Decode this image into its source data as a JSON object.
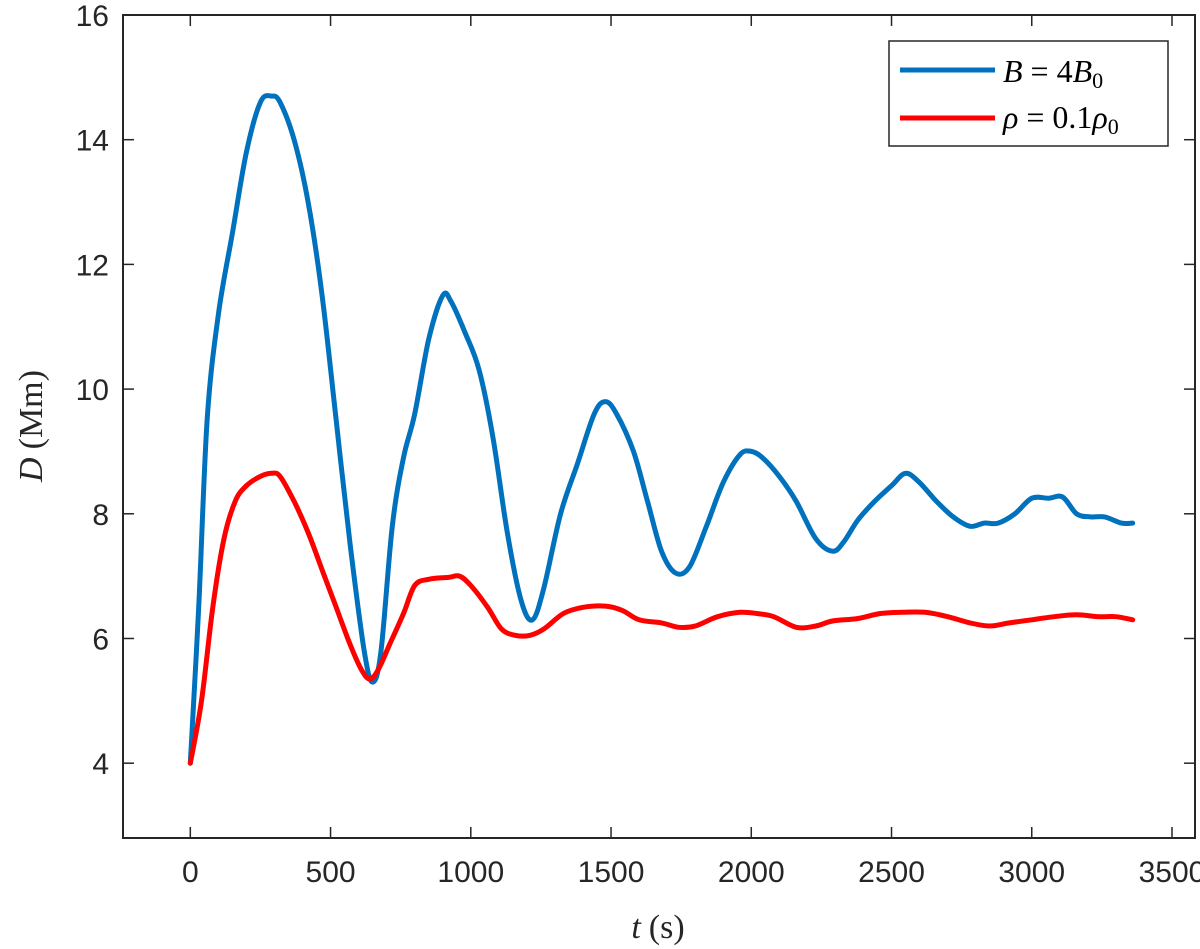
{
  "chart_data": {
    "type": "line",
    "title": "",
    "xlabel": "t (s)",
    "ylabel": "D (Mm)",
    "xlim": [
      -240,
      3582
    ],
    "ylim": [
      2.8,
      16
    ],
    "xticks": [
      0,
      500,
      1000,
      1500,
      2000,
      2500,
      3000,
      3500
    ],
    "yticks": [
      4,
      6,
      8,
      10,
      12,
      14,
      16
    ],
    "grid": false,
    "legend_position": "upper right",
    "series": [
      {
        "name": "B = 4B_0",
        "color": "#0072BD",
        "t": [
          0,
          30,
          60,
          100,
          150,
          200,
          250,
          290,
          320,
          370,
          420,
          470,
          520,
          570,
          620,
          650,
          680,
          720,
          760,
          800,
          850,
          900,
          930,
          980,
          1030,
          1080,
          1130,
          1180,
          1220,
          1260,
          1320,
          1380,
          1440,
          1480,
          1520,
          1580,
          1630,
          1680,
          1730,
          1780,
          1840,
          1900,
          1960,
          2000,
          2040,
          2100,
          2160,
          2230,
          2290,
          2330,
          2380,
          2440,
          2500,
          2550,
          2600,
          2660,
          2720,
          2780,
          2830,
          2880,
          2940,
          3000,
          3060,
          3110,
          3160,
          3210,
          3260,
          3320,
          3360
        ],
        "values": [
          4.0,
          6.5,
          9.5,
          11.2,
          12.5,
          13.8,
          14.6,
          14.7,
          14.6,
          14.0,
          13.0,
          11.5,
          9.5,
          7.5,
          5.8,
          5.3,
          5.8,
          7.8,
          8.9,
          9.6,
          10.8,
          11.5,
          11.4,
          10.9,
          10.3,
          9.2,
          7.7,
          6.6,
          6.3,
          6.8,
          8.0,
          8.8,
          9.6,
          9.8,
          9.6,
          9.0,
          8.2,
          7.4,
          7.05,
          7.15,
          7.8,
          8.5,
          8.95,
          9.0,
          8.9,
          8.6,
          8.2,
          7.6,
          7.4,
          7.55,
          7.9,
          8.2,
          8.45,
          8.65,
          8.5,
          8.2,
          7.95,
          7.8,
          7.85,
          7.85,
          8.0,
          8.25,
          8.25,
          8.27,
          8.0,
          7.95,
          7.95,
          7.85,
          7.85
        ]
      },
      {
        "name": "ρ = 0.1ρ_0",
        "color": "#FF0000",
        "t": [
          0,
          40,
          80,
          120,
          160,
          200,
          250,
          290,
          320,
          370,
          420,
          470,
          520,
          570,
          610,
          640,
          670,
          710,
          760,
          800,
          850,
          920,
          960,
          1000,
          1060,
          1110,
          1160,
          1210,
          1260,
          1330,
          1400,
          1480,
          1540,
          1600,
          1680,
          1740,
          1800,
          1880,
          1960,
          2020,
          2080,
          2160,
          2230,
          2290,
          2380,
          2460,
          2540,
          2620,
          2700,
          2780,
          2850,
          2920,
          3000,
          3080,
          3160,
          3240,
          3300,
          3360
        ],
        "values": [
          4.0,
          5.0,
          6.5,
          7.6,
          8.2,
          8.45,
          8.6,
          8.65,
          8.6,
          8.2,
          7.7,
          7.1,
          6.5,
          5.9,
          5.5,
          5.35,
          5.5,
          5.9,
          6.4,
          6.85,
          6.95,
          6.98,
          7.0,
          6.85,
          6.5,
          6.15,
          6.05,
          6.05,
          6.15,
          6.4,
          6.5,
          6.52,
          6.45,
          6.3,
          6.25,
          6.18,
          6.2,
          6.35,
          6.42,
          6.4,
          6.35,
          6.18,
          6.2,
          6.28,
          6.32,
          6.4,
          6.42,
          6.42,
          6.35,
          6.25,
          6.2,
          6.25,
          6.3,
          6.35,
          6.38,
          6.35,
          6.35,
          6.3
        ]
      }
    ]
  },
  "axes": {
    "x_title_var": "t",
    "x_title_unit": "(s)",
    "y_title_var": "D",
    "y_title_unit": "(Mm)"
  },
  "legend": {
    "items": [
      {
        "var": "B",
        "eq": " = 4",
        "var2": "B",
        "sub": "0"
      },
      {
        "var": "ρ",
        "eq": " = 0.1",
        "var2": "ρ",
        "sub": "0"
      }
    ]
  }
}
